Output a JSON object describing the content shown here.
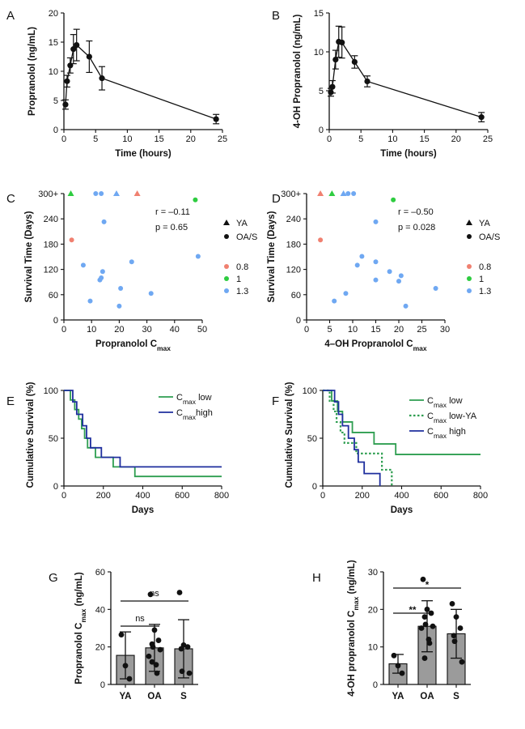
{
  "chart_data": [
    {
      "id": "A",
      "type": "line",
      "panel_label": "A",
      "xlabel": "Time (hours)",
      "ylabel": "Propranolol (ng/mL)",
      "xlim": [
        0,
        25
      ],
      "ylim": [
        0,
        20
      ],
      "xticks": [
        0,
        5,
        10,
        15,
        20,
        25
      ],
      "yticks": [
        0,
        5,
        10,
        15,
        20
      ],
      "points": [
        {
          "x": 0.25,
          "y": 4.3,
          "err": 0.8
        },
        {
          "x": 0.5,
          "y": 8.3,
          "err": 1.0
        },
        {
          "x": 1.0,
          "y": 11.0,
          "err": 1.3
        },
        {
          "x": 1.5,
          "y": 13.8,
          "err": 2.5
        },
        {
          "x": 2.0,
          "y": 14.5,
          "err": 2.7
        },
        {
          "x": 4.0,
          "y": 12.5,
          "err": 2.7
        },
        {
          "x": 6.0,
          "y": 8.8,
          "err": 2.0
        },
        {
          "x": 24.0,
          "y": 1.8,
          "err": 0.8
        }
      ]
    },
    {
      "id": "B",
      "type": "line",
      "panel_label": "B",
      "xlabel": "Time (hours)",
      "ylabel": "4-OH Propranolol (ng/mL)",
      "xlim": [
        0,
        25
      ],
      "ylim": [
        0,
        15
      ],
      "xticks": [
        0,
        5,
        10,
        15,
        20,
        25
      ],
      "yticks": [
        0,
        5,
        10,
        15
      ],
      "points": [
        {
          "x": 0.25,
          "y": 4.8,
          "err": 0.5
        },
        {
          "x": 0.5,
          "y": 5.5,
          "err": 0.8
        },
        {
          "x": 1.0,
          "y": 9.0,
          "err": 1.2
        },
        {
          "x": 1.5,
          "y": 11.3,
          "err": 2.0
        },
        {
          "x": 2.0,
          "y": 11.2,
          "err": 2.0
        },
        {
          "x": 4.0,
          "y": 8.7,
          "err": 0.8
        },
        {
          "x": 6.0,
          "y": 6.2,
          "err": 0.7
        },
        {
          "x": 24.0,
          "y": 1.6,
          "err": 0.6
        }
      ]
    },
    {
      "id": "C",
      "type": "scatter",
      "panel_label": "C",
      "xlabel_main": "Propranolol C",
      "xlabel_sub": "max",
      "ylabel": "Survival Time (Days)",
      "xlim": [
        0,
        50
      ],
      "ylim": [
        0,
        300
      ],
      "xticks": [
        0,
        10,
        20,
        30,
        40,
        50
      ],
      "yticks": [
        0,
        60,
        120,
        180,
        240
      ],
      "ytick_labels": [
        "0",
        "60",
        "120",
        "180",
        "240",
        "300+"
      ],
      "ytop_value": 300,
      "annotation_r": "r = –0.11",
      "annotation_p": "p = 0.65",
      "legend_shapes": [
        {
          "label": "YA",
          "marker": "triangle"
        },
        {
          "label": "OA/S",
          "marker": "circle"
        }
      ],
      "legend_doses": [
        {
          "label": "0.8",
          "color": "#f08070"
        },
        {
          "label": "1",
          "color": "#2ecc40"
        },
        {
          "label": "1.3",
          "color": "#6fa8f2"
        }
      ],
      "points": [
        {
          "x": 2.5,
          "y": 300,
          "dose": "1",
          "marker": "triangle"
        },
        {
          "x": 11.5,
          "y": 300,
          "dose": "1.3",
          "marker": "circle"
        },
        {
          "x": 13.5,
          "y": 300,
          "dose": "1.3",
          "marker": "circle"
        },
        {
          "x": 19.0,
          "y": 300,
          "dose": "1.3",
          "marker": "triangle"
        },
        {
          "x": 26.5,
          "y": 300,
          "dose": "0.8",
          "marker": "triangle"
        },
        {
          "x": 47.5,
          "y": 285,
          "dose": "1",
          "marker": "circle"
        },
        {
          "x": 2.8,
          "y": 190,
          "dose": "0.8",
          "marker": "circle"
        },
        {
          "x": 14.5,
          "y": 233,
          "dose": "1.3",
          "marker": "circle"
        },
        {
          "x": 7.0,
          "y": 130,
          "dose": "1.3",
          "marker": "circle"
        },
        {
          "x": 24.5,
          "y": 138,
          "dose": "1.3",
          "marker": "circle"
        },
        {
          "x": 48.5,
          "y": 151,
          "dose": "1.3",
          "marker": "circle"
        },
        {
          "x": 14.0,
          "y": 115,
          "dose": "1.3",
          "marker": "circle"
        },
        {
          "x": 13.5,
          "y": 100,
          "dose": "1.3",
          "marker": "circle"
        },
        {
          "x": 13.0,
          "y": 95,
          "dose": "1.3",
          "marker": "circle"
        },
        {
          "x": 20.5,
          "y": 75,
          "dose": "1.3",
          "marker": "circle"
        },
        {
          "x": 31.5,
          "y": 63,
          "dose": "1.3",
          "marker": "circle"
        },
        {
          "x": 9.5,
          "y": 45,
          "dose": "1.3",
          "marker": "circle"
        },
        {
          "x": 20.0,
          "y": 33,
          "dose": "1.3",
          "marker": "circle"
        }
      ]
    },
    {
      "id": "D",
      "type": "scatter",
      "panel_label": "D",
      "xlabel_main": "4–OH Propranolol C",
      "xlabel_sub": "max",
      "ylabel": "Survival Time (Days)",
      "xlim": [
        0,
        30
      ],
      "ylim": [
        0,
        300
      ],
      "xticks": [
        0,
        5,
        10,
        15,
        20,
        25,
        30
      ],
      "yticks": [
        0,
        60,
        120,
        180,
        240
      ],
      "ytick_labels": [
        "0",
        "60",
        "120",
        "180",
        "240",
        "300+"
      ],
      "ytop_value": 300,
      "annotation_r": "r = –0.50",
      "annotation_p": "p = 0.028",
      "legend_shapes": [
        {
          "label": "YA",
          "marker": "triangle"
        },
        {
          "label": "OA/S",
          "marker": "circle"
        }
      ],
      "legend_doses": [
        {
          "label": "0.8",
          "color": "#f08070"
        },
        {
          "label": "1",
          "color": "#2ecc40"
        },
        {
          "label": "1.3",
          "color": "#6fa8f2"
        }
      ],
      "points": [
        {
          "x": 3.0,
          "y": 300,
          "dose": "0.8",
          "marker": "triangle"
        },
        {
          "x": 5.5,
          "y": 300,
          "dose": "1",
          "marker": "triangle"
        },
        {
          "x": 8.0,
          "y": 300,
          "dose": "1.3",
          "marker": "triangle"
        },
        {
          "x": 9.0,
          "y": 300,
          "dose": "1.3",
          "marker": "circle"
        },
        {
          "x": 10.2,
          "y": 300,
          "dose": "1.3",
          "marker": "circle"
        },
        {
          "x": 18.8,
          "y": 285,
          "dose": "1",
          "marker": "circle"
        },
        {
          "x": 3.0,
          "y": 190,
          "dose": "0.8",
          "marker": "circle"
        },
        {
          "x": 15.0,
          "y": 233,
          "dose": "1.3",
          "marker": "circle"
        },
        {
          "x": 12.0,
          "y": 151,
          "dose": "1.3",
          "marker": "circle"
        },
        {
          "x": 15.0,
          "y": 138,
          "dose": "1.3",
          "marker": "circle"
        },
        {
          "x": 11.0,
          "y": 130,
          "dose": "1.3",
          "marker": "circle"
        },
        {
          "x": 18.0,
          "y": 115,
          "dose": "1.3",
          "marker": "circle"
        },
        {
          "x": 20.5,
          "y": 105,
          "dose": "1.3",
          "marker": "circle"
        },
        {
          "x": 15.0,
          "y": 95,
          "dose": "1.3",
          "marker": "circle"
        },
        {
          "x": 20.0,
          "y": 92,
          "dose": "1.3",
          "marker": "circle"
        },
        {
          "x": 28.0,
          "y": 75,
          "dose": "1.3",
          "marker": "circle"
        },
        {
          "x": 8.5,
          "y": 63,
          "dose": "1.3",
          "marker": "circle"
        },
        {
          "x": 6.0,
          "y": 45,
          "dose": "1.3",
          "marker": "circle"
        },
        {
          "x": 21.5,
          "y": 33,
          "dose": "1.3",
          "marker": "circle"
        }
      ]
    },
    {
      "id": "E",
      "type": "line",
      "subtype": "kaplan-meier",
      "panel_label": "E",
      "xlabel": "Days",
      "ylabel": "Cumulative Survival (%)",
      "xlim": [
        0,
        800
      ],
      "ylim": [
        0,
        100
      ],
      "xticks": [
        0,
        200,
        400,
        600,
        800
      ],
      "yticks": [
        0,
        50,
        100
      ],
      "series": [
        {
          "name_main": "C",
          "name_sub": "max",
          "name_tail": " low",
          "color": "#2e9e50",
          "dash": false,
          "steps": [
            [
              0,
              100
            ],
            [
              33,
              100
            ],
            [
              33,
              90
            ],
            [
              55,
              90
            ],
            [
              55,
              80
            ],
            [
              75,
              80
            ],
            [
              75,
              70
            ],
            [
              90,
              70
            ],
            [
              90,
              60
            ],
            [
              105,
              60
            ],
            [
              105,
              50
            ],
            [
              120,
              50
            ],
            [
              120,
              40
            ],
            [
              160,
              40
            ],
            [
              160,
              30
            ],
            [
              250,
              30
            ],
            [
              250,
              20
            ],
            [
              360,
              20
            ],
            [
              360,
              10
            ],
            [
              800,
              10
            ]
          ]
        },
        {
          "name_main": "C",
          "name_sub": "max",
          "name_tail": "high",
          "color": "#1f2f9e",
          "dash": false,
          "steps": [
            [
              0,
              100
            ],
            [
              45,
              100
            ],
            [
              45,
              88
            ],
            [
              65,
              88
            ],
            [
              65,
              75
            ],
            [
              95,
              75
            ],
            [
              95,
              63
            ],
            [
              115,
              63
            ],
            [
              115,
              50
            ],
            [
              135,
              50
            ],
            [
              135,
              40
            ],
            [
              190,
              40
            ],
            [
              190,
              30
            ],
            [
              285,
              30
            ],
            [
              285,
              20
            ],
            [
              800,
              20
            ]
          ]
        }
      ]
    },
    {
      "id": "F",
      "type": "line",
      "subtype": "kaplan-meier",
      "panel_label": "F",
      "xlabel": "Days",
      "ylabel": "Cumulative Survival (%)",
      "xlim": [
        0,
        800
      ],
      "ylim": [
        0,
        100
      ],
      "xticks": [
        0,
        200,
        400,
        600,
        800
      ],
      "yticks": [
        0,
        50,
        100
      ],
      "series": [
        {
          "name_main": "C",
          "name_sub": "max",
          "name_tail": " low",
          "color": "#2e9e50",
          "dash": false,
          "steps": [
            [
              0,
              100
            ],
            [
              45,
              100
            ],
            [
              45,
              89
            ],
            [
              75,
              89
            ],
            [
              75,
              78
            ],
            [
              100,
              78
            ],
            [
              100,
              67
            ],
            [
              150,
              67
            ],
            [
              150,
              56
            ],
            [
              260,
              56
            ],
            [
              260,
              44
            ],
            [
              370,
              44
            ],
            [
              370,
              33
            ],
            [
              800,
              33
            ]
          ]
        },
        {
          "name_main": "C",
          "name_sub": "max",
          "name_tail": " low-YA",
          "color": "#2e9e50",
          "dash": true,
          "steps": [
            [
              0,
              100
            ],
            [
              35,
              100
            ],
            [
              35,
              89
            ],
            [
              55,
              89
            ],
            [
              55,
              78
            ],
            [
              70,
              78
            ],
            [
              70,
              67
            ],
            [
              90,
              67
            ],
            [
              90,
              56
            ],
            [
              110,
              56
            ],
            [
              110,
              45
            ],
            [
              170,
              45
            ],
            [
              170,
              34
            ],
            [
              300,
              34
            ],
            [
              300,
              17
            ],
            [
              350,
              17
            ],
            [
              350,
              0
            ]
          ]
        },
        {
          "name_main": "C",
          "name_sub": "max",
          "name_tail": " high",
          "color": "#1f2f9e",
          "dash": false,
          "steps": [
            [
              0,
              100
            ],
            [
              60,
              100
            ],
            [
              60,
              88
            ],
            [
              80,
              88
            ],
            [
              80,
              75
            ],
            [
              100,
              75
            ],
            [
              100,
              63
            ],
            [
              130,
              63
            ],
            [
              130,
              50
            ],
            [
              160,
              50
            ],
            [
              160,
              38
            ],
            [
              180,
              38
            ],
            [
              180,
              25
            ],
            [
              210,
              25
            ],
            [
              210,
              13
            ],
            [
              290,
              13
            ],
            [
              290,
              0
            ]
          ]
        }
      ]
    },
    {
      "id": "G",
      "type": "bar",
      "panel_label": "G",
      "ylabel_main": "Propranolol C",
      "ylabel_sub": "max",
      "ylabel_tail": " (ng/mL)",
      "categories": [
        "YA",
        "OA",
        "S"
      ],
      "means": [
        15.5,
        19.5,
        19.0
      ],
      "sd": [
        12.5,
        12.5,
        15.5
      ],
      "ylim": [
        0,
        60
      ],
      "yticks": [
        0,
        20,
        40,
        60
      ],
      "points": [
        [
          26.5,
          10.0,
          3.0
        ],
        [
          48.0,
          29.0,
          23.5,
          21.5,
          20.0,
          18.5,
          15.0,
          10.5,
          6.0,
          12.0
        ],
        [
          49.0,
          21.0,
          20.0,
          19.0,
          7.0,
          6.0
        ]
      ],
      "comparisons": [
        {
          "from": 0,
          "to": 1,
          "label": "ns"
        },
        {
          "from": 0,
          "to": 2,
          "label": "ns"
        }
      ]
    },
    {
      "id": "H",
      "type": "bar",
      "panel_label": "H",
      "ylabel_main": "4-OH propranolol C",
      "ylabel_sub": "max",
      "ylabel_tail": " (ng/mL)",
      "categories": [
        "YA",
        "OA",
        "S"
      ],
      "means": [
        5.5,
        15.5,
        13.5
      ],
      "sd": [
        2.5,
        6.8,
        6.5
      ],
      "ylim": [
        0,
        30
      ],
      "yticks": [
        0,
        10,
        20,
        30
      ],
      "points": [
        [
          7.7,
          5.0,
          3.0
        ],
        [
          28.0,
          20.0,
          19.0,
          18.0,
          16.0,
          15.5,
          15.0,
          12.0,
          11.0,
          7.0
        ],
        [
          21.5,
          18.0,
          15.0,
          13.0,
          11.5,
          6.0
        ]
      ],
      "comparisons": [
        {
          "from": 0,
          "to": 1,
          "label": "**"
        },
        {
          "from": 0,
          "to": 2,
          "label": "*"
        }
      ]
    }
  ]
}
